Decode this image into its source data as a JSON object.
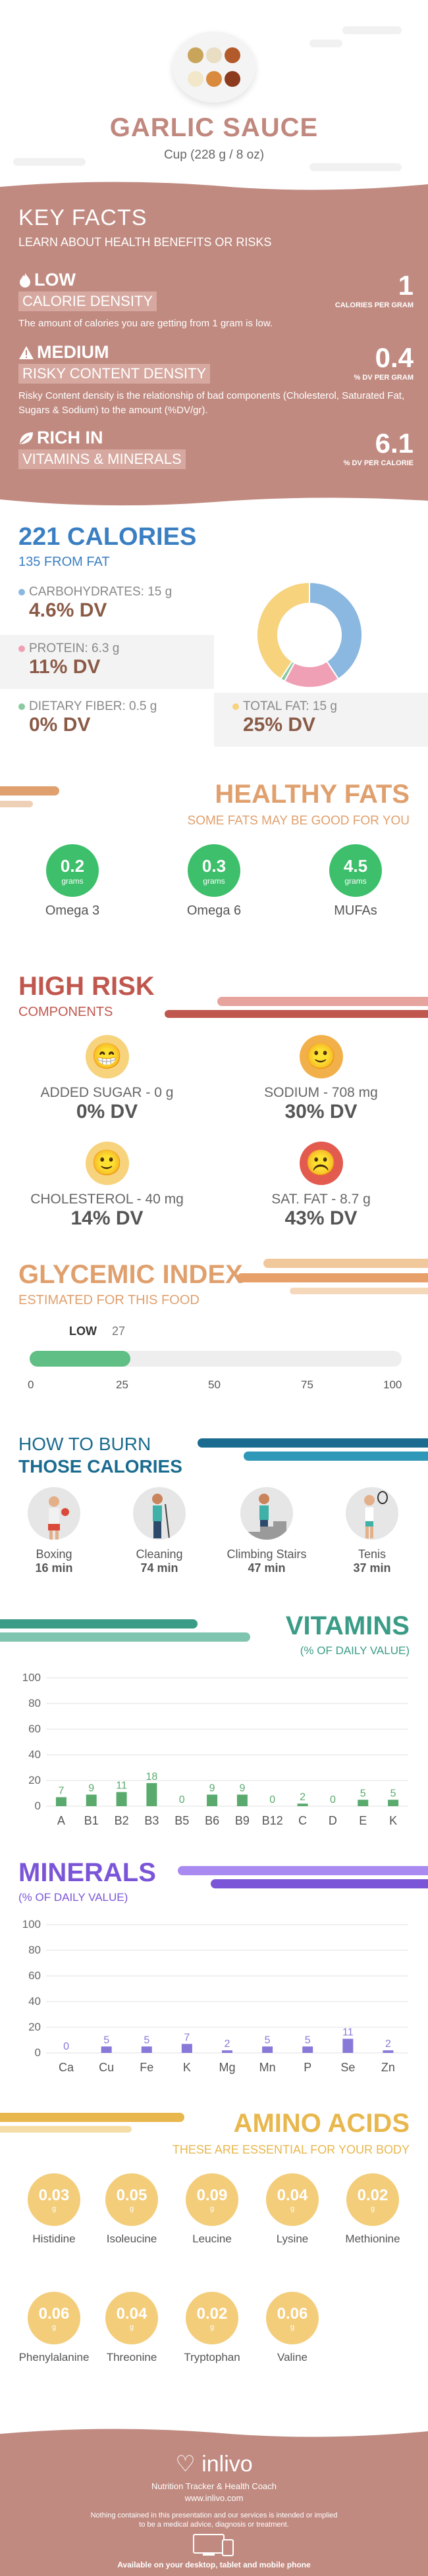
{
  "header": {
    "title": "GARLIC SAUCE",
    "serving": "Cup (228 g / 8 oz)"
  },
  "key_facts": {
    "title": "KEY FACTS",
    "lead": "LEARN ABOUT HEALTH BENEFITS OR RISKS",
    "items": [
      {
        "level": "LOW",
        "name": "CALORIE DENSITY",
        "value": "1",
        "unit": "CALORIES PER GRAM",
        "desc": "The amount of calories you are getting from 1 gram is low."
      },
      {
        "level": "MEDIUM",
        "name": "RISKY CONTENT DENSITY",
        "value": "0.4",
        "unit": "% DV PER GRAM",
        "desc": "Risky Content density is the relationship of bad components (Cholesterol, Saturated Fat, Sugars & Sodium) to the amount (%DV/gr)."
      },
      {
        "level": "RICH IN",
        "name": "VITAMINS & MINERALS",
        "value": "6.1",
        "unit": "% DV PER CALORIE",
        "desc": ""
      }
    ]
  },
  "calories": {
    "title": "221 CALORIES",
    "from_fat": "135 FROM FAT",
    "carbs": {
      "label": "CARBOHYDRATES: 15 g",
      "dv": "4.6% DV",
      "color": "#8bb8e0"
    },
    "protein": {
      "label": "PROTEIN: 6.3 g",
      "dv": "11% DV",
      "color": "#f0a0b4"
    },
    "fiber": {
      "label": "DIETARY FIBER: 0.5 g",
      "dv": "0% DV",
      "color": "#8cc9a2"
    },
    "fat": {
      "label": "TOTAL FAT: 15 g",
      "dv": "25% DV",
      "color": "#f6d37c"
    }
  },
  "chart_data": [
    {
      "type": "pie",
      "title": "",
      "labels": [
        "Carbohydrates",
        "Protein",
        "Dietary Fiber",
        "Total Fat"
      ],
      "values": [
        15,
        6.3,
        0.5,
        15
      ],
      "colors": [
        "#8bb8e0",
        "#f0a0b4",
        "#8cc9a2",
        "#f6d37c"
      ]
    },
    {
      "type": "bar",
      "title": "VITAMINS",
      "categories": [
        "A",
        "B1",
        "B2",
        "B3",
        "B5",
        "B6",
        "B9",
        "B12",
        "C",
        "D",
        "E",
        "K"
      ],
      "values": [
        7,
        9,
        11,
        18,
        0,
        9,
        9,
        0,
        2,
        0,
        5,
        5
      ],
      "ylim": [
        0,
        100
      ],
      "yticks": [
        0,
        20,
        40,
        60,
        80,
        100
      ],
      "color": "#5aaa6e"
    },
    {
      "type": "bar",
      "title": "MINERALS",
      "categories": [
        "Ca",
        "Cu",
        "Fe",
        "K",
        "Mg",
        "Mn",
        "P",
        "Se",
        "Zn"
      ],
      "values": [
        0,
        5,
        5,
        7,
        2,
        5,
        5,
        11,
        2
      ],
      "ylim": [
        0,
        100
      ],
      "yticks": [
        0,
        20,
        40,
        60,
        80,
        100
      ],
      "color": "#8878d8"
    }
  ],
  "healthy_fats": {
    "title": "HEALTHY FATS",
    "subtitle": "SOME FATS MAY BE GOOD FOR YOU",
    "items": [
      {
        "value": "0.2",
        "unit": "grams",
        "name": "Omega 3"
      },
      {
        "value": "0.3",
        "unit": "grams",
        "name": "Omega 6"
      },
      {
        "value": "4.5",
        "unit": "grams",
        "name": "MUFAs"
      }
    ]
  },
  "high_risk": {
    "title": "HIGH RISK",
    "subtitle": "COMPONENTS",
    "items": [
      {
        "name": "ADDED SUGAR - 0 g",
        "dv": "0% DV",
        "face": "😁",
        "color": "#f6d37c"
      },
      {
        "name": "SODIUM - 708 mg",
        "dv": "30% DV",
        "face": "🙂",
        "color": "#f2b04a"
      },
      {
        "name": "CHOLESTEROL - 40 mg",
        "dv": "14% DV",
        "face": "🙂",
        "color": "#f6d37c"
      },
      {
        "name": "SAT. FAT - 8.7 g",
        "dv": "43% DV",
        "face": "☹️",
        "color": "#e35a4e"
      }
    ]
  },
  "glycemic": {
    "title": "GLYCEMIC INDEX",
    "subtitle": "ESTIMATED FOR THIS FOOD",
    "level": "LOW",
    "value": 27,
    "value_label": "27",
    "ticks": [
      "0",
      "25",
      "50",
      "75",
      "100"
    ]
  },
  "burn": {
    "title1": "HOW TO BURN",
    "title2": "THOSE CALORIES",
    "items": [
      {
        "name": "Boxing",
        "time": "16 min"
      },
      {
        "name": "Cleaning",
        "time": "74 min"
      },
      {
        "name": "Climbing Stairs",
        "time": "47 min"
      },
      {
        "name": "Tenis",
        "time": "37 min"
      }
    ]
  },
  "vitamins": {
    "title": "VITAMINS",
    "subtitle": "(% OF DAILY VALUE)"
  },
  "minerals": {
    "title": "MINERALS",
    "subtitle": "(% OF DAILY VALUE)"
  },
  "amino": {
    "title": "AMINO ACIDS",
    "subtitle": "THESE ARE ESSENTIAL FOR YOUR BODY",
    "unit": "g",
    "items": [
      {
        "value": "0.03",
        "name": "Histidine"
      },
      {
        "value": "0.05",
        "name": "Isoleucine"
      },
      {
        "value": "0.09",
        "name": "Leucine"
      },
      {
        "value": "0.04",
        "name": "Lysine"
      },
      {
        "value": "0.02",
        "name": "Methionine"
      },
      {
        "value": "0.06",
        "name": "Phenylalanine"
      },
      {
        "value": "0.04",
        "name": "Threonine"
      },
      {
        "value": "0.02",
        "name": "Tryptophan"
      },
      {
        "value": "0.06",
        "name": "Valine"
      }
    ]
  },
  "footer": {
    "brand": "inlivo",
    "tagline": "Nutrition Tracker & Health Coach",
    "url": "www.inlivo.com",
    "disclaimer1": "Nothing contained in this presentation and our services is intended or implied",
    "disclaimer2": "to be a medical advice, diagnosis or treatment.",
    "available": "Available on your desktop, tablet and mobile phone"
  }
}
